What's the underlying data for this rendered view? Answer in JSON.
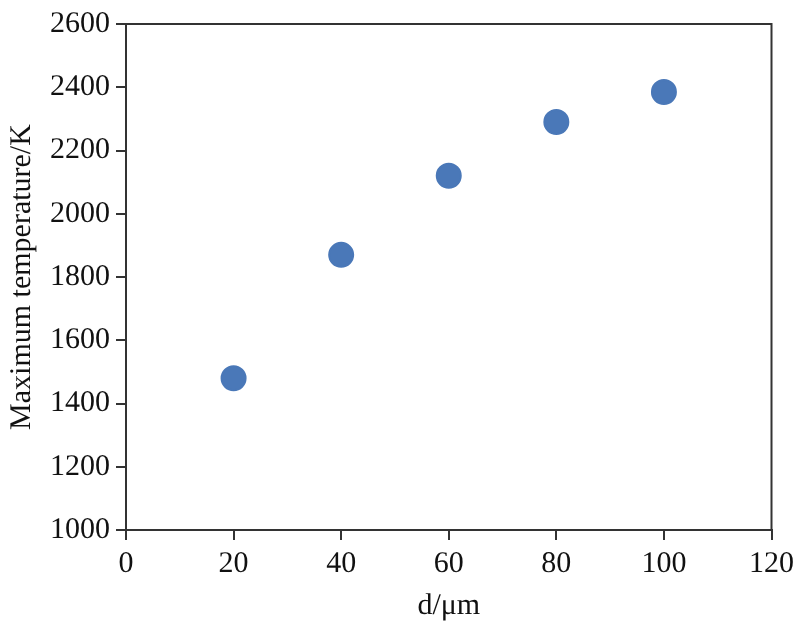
{
  "chart_data": {
    "type": "scatter",
    "xlabel": "d/μm",
    "ylabel": "Maximum temperature/K",
    "x": [
      20,
      40,
      60,
      80,
      100
    ],
    "series": [
      {
        "color": "#4a78b8",
        "values": [
          1480,
          1870,
          2120,
          2290,
          2385
        ]
      }
    ],
    "xlim": [
      0,
      120
    ],
    "xticks": [
      0,
      20,
      40,
      60,
      80,
      100,
      120
    ],
    "ylim": [
      1000,
      2600
    ],
    "yticks": [
      1000,
      1200,
      1400,
      1600,
      1800,
      2000,
      2200,
      2400,
      2600
    ],
    "grid": false,
    "legend": false,
    "marker": "circle"
  }
}
